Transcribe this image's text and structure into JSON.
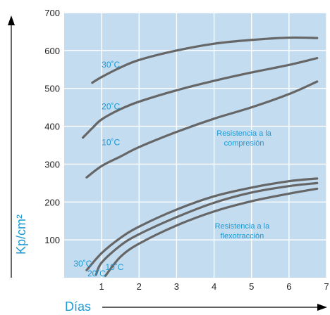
{
  "chart_data": {
    "type": "line",
    "title": "",
    "xlabel": "Días",
    "ylabel": "Kp/cm²",
    "xlim": [
      0,
      7
    ],
    "ylim": [
      0,
      700
    ],
    "x_ticks": [
      "1",
      "2",
      "3",
      "4",
      "5",
      "6",
      "7"
    ],
    "y_ticks": [
      "100",
      "200",
      "300",
      "400",
      "500",
      "600",
      "700"
    ],
    "grid": true,
    "colors": {
      "plot_bg": "#c3dcf0",
      "grid": "#ffffff",
      "curve": "#666666",
      "label": "#1a9ad6",
      "axis": "#000000"
    },
    "groups": [
      {
        "label_lines": [
          "Resistencia a la",
          "compresión"
        ],
        "series": [
          {
            "name": "30˚C",
            "points": [
              [
                0.75,
                515
              ],
              [
                1,
                530
              ],
              [
                1.5,
                555
              ],
              [
                2,
                575
              ],
              [
                3,
                600
              ],
              [
                4,
                618
              ],
              [
                5,
                628
              ],
              [
                6,
                634
              ],
              [
                6.75,
                633
              ]
            ]
          },
          {
            "name": "20˚C",
            "points": [
              [
                0.5,
                370
              ],
              [
                0.75,
                395
              ],
              [
                1,
                418
              ],
              [
                1.5,
                445
              ],
              [
                2,
                465
              ],
              [
                3,
                495
              ],
              [
                4,
                520
              ],
              [
                5,
                542
              ],
              [
                6,
                562
              ],
              [
                6.75,
                580
              ]
            ]
          },
          {
            "name": "10˚C",
            "points": [
              [
                0.6,
                265
              ],
              [
                1,
                295
              ],
              [
                1.5,
                320
              ],
              [
                2,
                345
              ],
              [
                3,
                385
              ],
              [
                4,
                420
              ],
              [
                5,
                450
              ],
              [
                6,
                485
              ],
              [
                6.75,
                518
              ]
            ]
          }
        ]
      },
      {
        "label_lines": [
          "Resistencia a la",
          "flexotracción"
        ],
        "series": [
          {
            "name": "30˚C",
            "points": [
              [
                0.6,
                20
              ],
              [
                1,
                65
              ],
              [
                1.5,
                105
              ],
              [
                2,
                135
              ],
              [
                3,
                180
              ],
              [
                4,
                215
              ],
              [
                5,
                238
              ],
              [
                6,
                255
              ],
              [
                6.75,
                262
              ]
            ]
          },
          {
            "name": "20˚C",
            "points": [
              [
                0.85,
                8
              ],
              [
                1,
                40
              ],
              [
                1.5,
                85
              ],
              [
                2,
                115
              ],
              [
                3,
                160
              ],
              [
                4,
                198
              ],
              [
                5,
                225
              ],
              [
                6,
                242
              ],
              [
                6.75,
                250
              ]
            ]
          },
          {
            "name": "10˚C",
            "points": [
              [
                1.1,
                5
              ],
              [
                1.5,
                55
              ],
              [
                2,
                90
              ],
              [
                3,
                138
              ],
              [
                4,
                175
              ],
              [
                5,
                202
              ],
              [
                6,
                222
              ],
              [
                6.75,
                235
              ]
            ]
          }
        ]
      }
    ]
  }
}
